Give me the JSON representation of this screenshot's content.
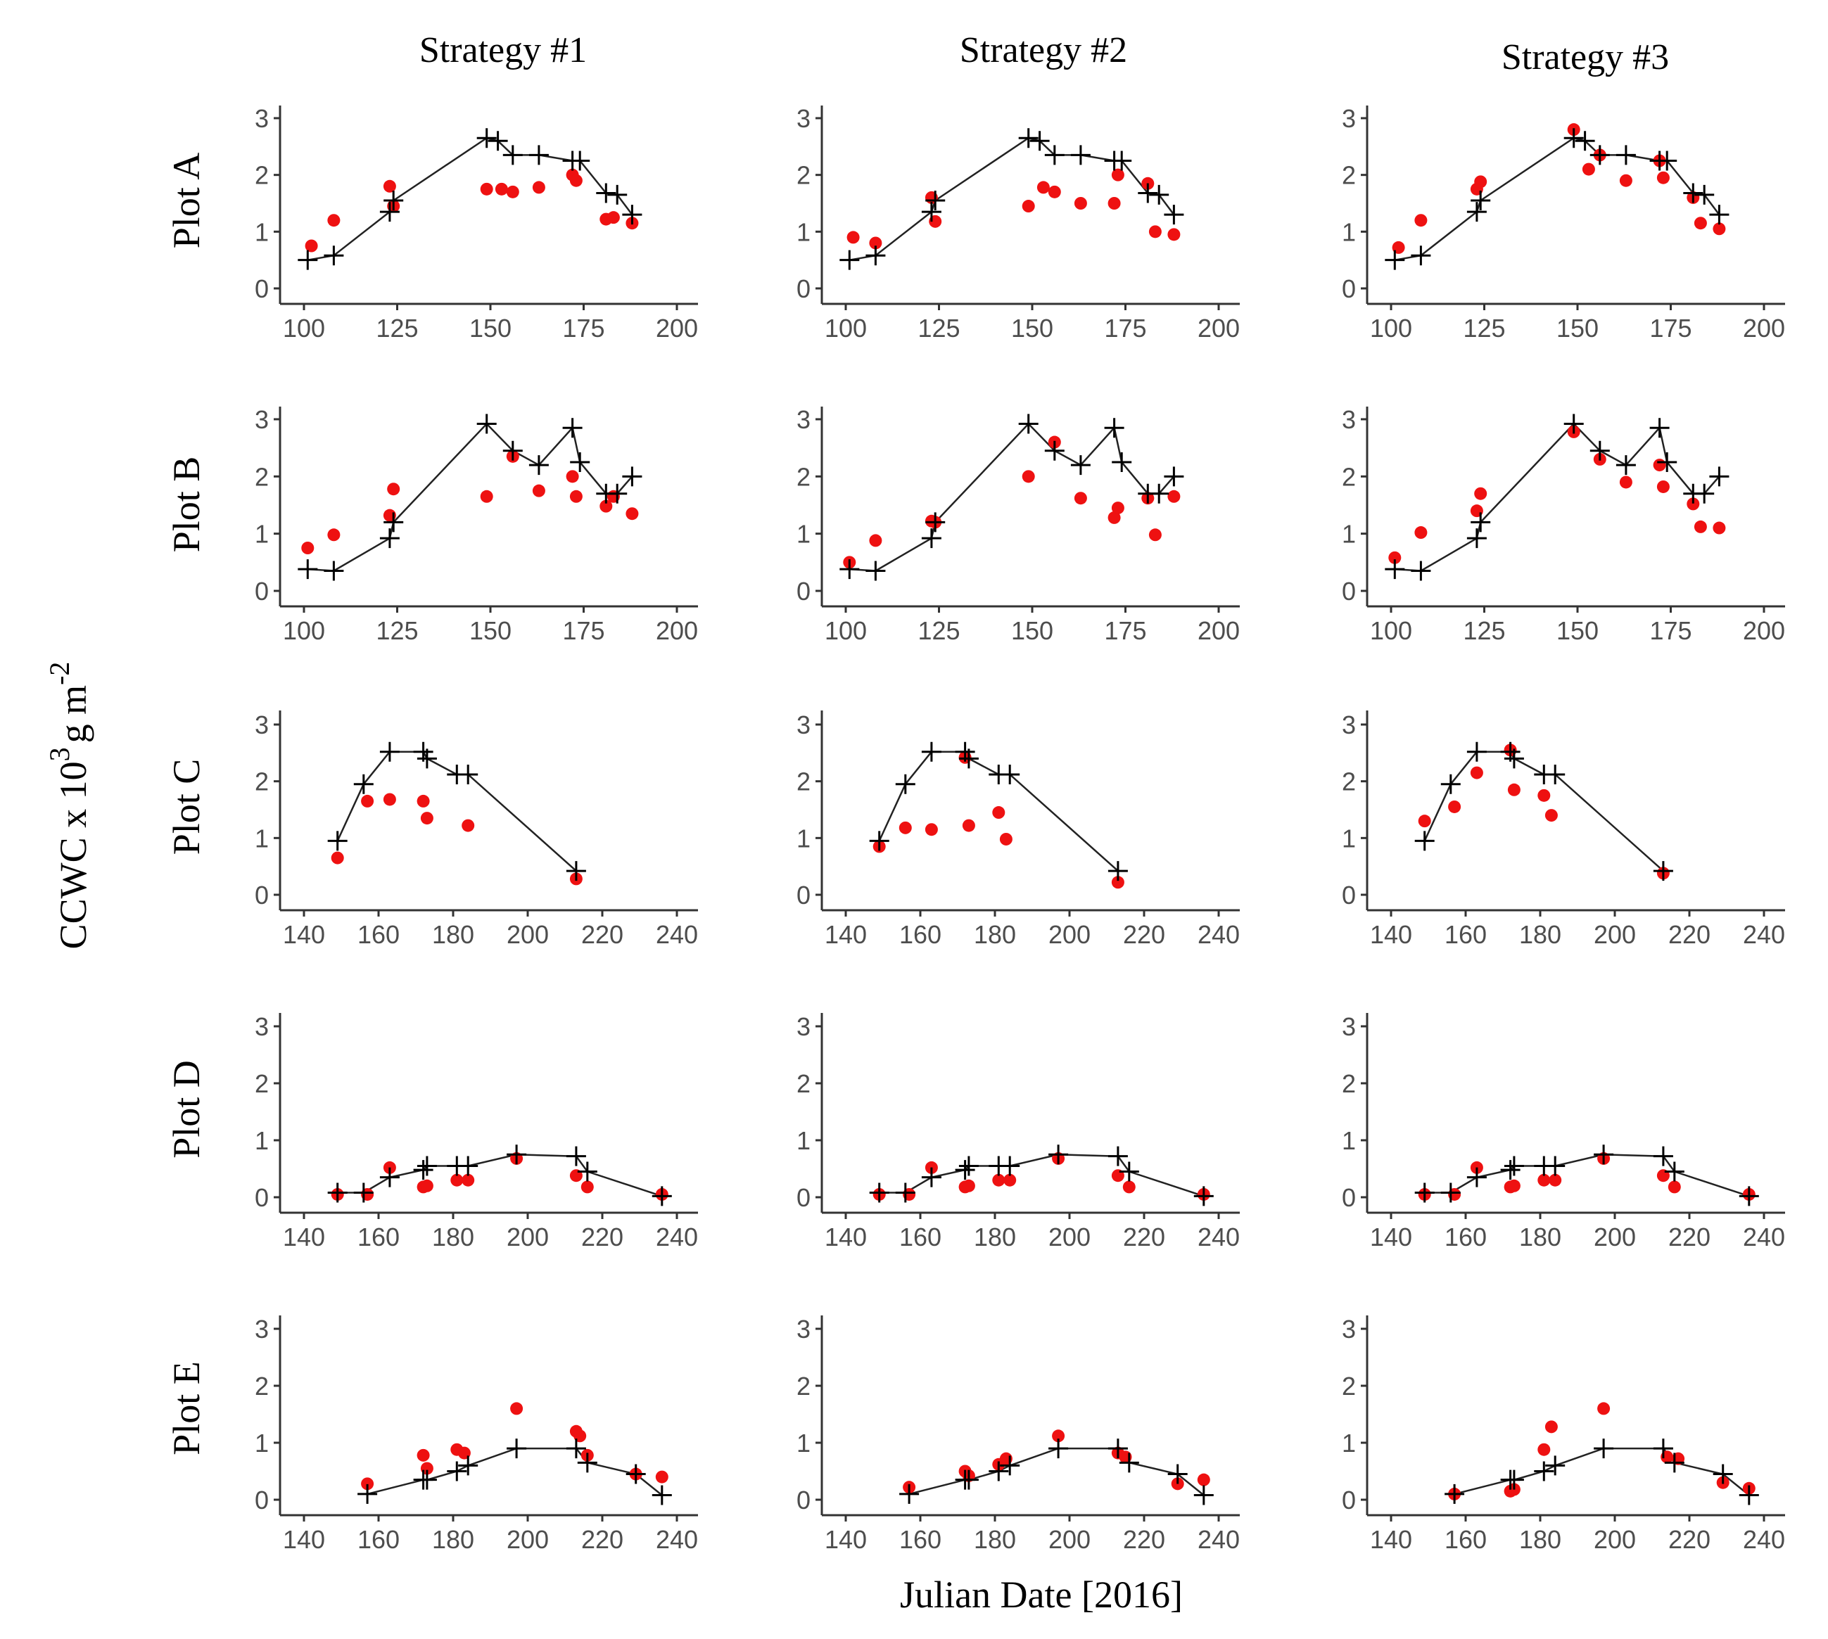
{
  "figure": {
    "ylabel": "CCWC x 10",
    "ylabel_sup1": "3",
    "ylabel_unit": "g m",
    "ylabel_sup2": "-2",
    "xlabel": "Julian Date [2016]",
    "columns": [
      "Strategy #1",
      "Strategy #2",
      "Strategy #3"
    ],
    "rows": [
      "Plot A",
      "Plot B",
      "Plot C",
      "Plot D",
      "Plot E"
    ],
    "colors": {
      "observed": "#000000",
      "estimated": "#ee1111",
      "axis": "#333333",
      "tick_text": "#4d4d4d"
    }
  },
  "chart_data": [
    {
      "type": "scatter",
      "plot": "Plot A",
      "strategy": "Strategy #1",
      "xlim": [
        100,
        200
      ],
      "ylim": [
        0,
        3
      ],
      "xticks": [
        100,
        125,
        150,
        175,
        200
      ],
      "yticks": [
        0,
        1,
        2,
        3
      ],
      "observed": {
        "x": [
          101,
          108,
          123,
          124,
          149,
          152,
          156,
          163,
          172,
          174,
          181,
          184,
          188
        ],
        "y": [
          0.5,
          0.58,
          1.35,
          1.55,
          2.65,
          2.6,
          2.35,
          2.35,
          2.25,
          2.25,
          1.68,
          1.65,
          1.3
        ]
      },
      "estimated": {
        "x": [
          102,
          108,
          123,
          124,
          149,
          153,
          156,
          163,
          172,
          173,
          181,
          183,
          188
        ],
        "y": [
          0.75,
          1.2,
          1.8,
          1.45,
          1.75,
          1.75,
          1.7,
          1.78,
          2.0,
          1.9,
          1.22,
          1.25,
          1.15
        ]
      }
    },
    {
      "type": "scatter",
      "plot": "Plot A",
      "strategy": "Strategy #2",
      "xlim": [
        100,
        200
      ],
      "ylim": [
        0,
        3
      ],
      "xticks": [
        100,
        125,
        150,
        175,
        200
      ],
      "yticks": [
        0,
        1,
        2,
        3
      ],
      "observed": {
        "x": [
          101,
          108,
          123,
          124,
          149,
          152,
          156,
          163,
          172,
          174,
          181,
          184,
          188
        ],
        "y": [
          0.5,
          0.58,
          1.35,
          1.55,
          2.65,
          2.6,
          2.35,
          2.35,
          2.25,
          2.25,
          1.68,
          1.65,
          1.3
        ]
      },
      "estimated": {
        "x": [
          102,
          108,
          123,
          124,
          149,
          153,
          156,
          163,
          172,
          173,
          181,
          183,
          188
        ],
        "y": [
          0.9,
          0.8,
          1.6,
          1.18,
          1.45,
          1.78,
          1.7,
          1.5,
          1.5,
          2.0,
          1.85,
          1.0,
          0.95
        ]
      }
    },
    {
      "type": "scatter",
      "plot": "Plot A",
      "strategy": "Strategy #3",
      "xlim": [
        100,
        200
      ],
      "ylim": [
        0,
        3
      ],
      "xticks": [
        100,
        125,
        150,
        175,
        200
      ],
      "yticks": [
        0,
        1,
        2,
        3
      ],
      "observed": {
        "x": [
          101,
          108,
          123,
          124,
          149,
          152,
          156,
          163,
          172,
          174,
          181,
          184,
          188
        ],
        "y": [
          0.5,
          0.58,
          1.35,
          1.55,
          2.65,
          2.6,
          2.35,
          2.35,
          2.25,
          2.25,
          1.68,
          1.65,
          1.3
        ]
      },
      "estimated": {
        "x": [
          102,
          108,
          123,
          124,
          149,
          153,
          156,
          163,
          172,
          173,
          181,
          183,
          188
        ],
        "y": [
          0.72,
          1.2,
          1.75,
          1.88,
          2.8,
          2.1,
          2.35,
          1.9,
          2.25,
          1.95,
          1.6,
          1.15,
          1.05
        ]
      }
    },
    {
      "type": "scatter",
      "plot": "Plot B",
      "strategy": "Strategy #1",
      "xlim": [
        100,
        200
      ],
      "ylim": [
        0,
        3
      ],
      "xticks": [
        100,
        125,
        150,
        175,
        200
      ],
      "yticks": [
        0,
        1,
        2,
        3
      ],
      "observed": {
        "x": [
          101,
          108,
          123,
          124,
          149,
          156,
          163,
          172,
          174,
          181,
          184,
          188
        ],
        "y": [
          0.38,
          0.35,
          0.92,
          1.2,
          2.92,
          2.45,
          2.2,
          2.85,
          2.25,
          1.7,
          1.7,
          2.0
        ]
      },
      "estimated": {
        "x": [
          101,
          108,
          123,
          124,
          149,
          156,
          163,
          172,
          173,
          181,
          183,
          188
        ],
        "y": [
          0.75,
          0.98,
          1.32,
          1.78,
          1.65,
          2.35,
          1.75,
          2.0,
          1.65,
          1.48,
          1.65,
          1.35
        ]
      }
    },
    {
      "type": "scatter",
      "plot": "Plot B",
      "strategy": "Strategy #2",
      "xlim": [
        100,
        200
      ],
      "ylim": [
        0,
        3
      ],
      "xticks": [
        100,
        125,
        150,
        175,
        200
      ],
      "yticks": [
        0,
        1,
        2,
        3
      ],
      "observed": {
        "x": [
          101,
          108,
          123,
          124,
          149,
          156,
          163,
          172,
          174,
          181,
          184,
          188
        ],
        "y": [
          0.38,
          0.35,
          0.92,
          1.2,
          2.92,
          2.45,
          2.2,
          2.85,
          2.25,
          1.7,
          1.7,
          2.0
        ]
      },
      "estimated": {
        "x": [
          101,
          108,
          123,
          124,
          149,
          156,
          163,
          172,
          173,
          181,
          183,
          188
        ],
        "y": [
          0.5,
          0.88,
          1.22,
          1.2,
          2.0,
          2.6,
          1.62,
          1.28,
          1.45,
          1.62,
          0.98,
          1.65
        ]
      }
    },
    {
      "type": "scatter",
      "plot": "Plot B",
      "strategy": "Strategy #3",
      "xlim": [
        100,
        200
      ],
      "ylim": [
        0,
        3
      ],
      "xticks": [
        100,
        125,
        150,
        175,
        200
      ],
      "yticks": [
        0,
        1,
        2,
        3
      ],
      "observed": {
        "x": [
          101,
          108,
          123,
          124,
          149,
          156,
          163,
          172,
          174,
          181,
          184,
          188
        ],
        "y": [
          0.38,
          0.35,
          0.92,
          1.2,
          2.92,
          2.45,
          2.2,
          2.85,
          2.25,
          1.7,
          1.7,
          2.0
        ]
      },
      "estimated": {
        "x": [
          101,
          108,
          123,
          124,
          149,
          156,
          163,
          172,
          173,
          181,
          183,
          188
        ],
        "y": [
          0.58,
          1.02,
          1.4,
          1.7,
          2.78,
          2.3,
          1.9,
          2.2,
          1.82,
          1.52,
          1.12,
          1.1
        ]
      }
    },
    {
      "type": "scatter",
      "plot": "Plot C",
      "strategy": "Strategy #1",
      "xlim": [
        140,
        240
      ],
      "ylim": [
        0,
        3
      ],
      "xticks": [
        140,
        160,
        180,
        200,
        220,
        240
      ],
      "yticks": [
        0,
        1,
        2,
        3
      ],
      "observed": {
        "x": [
          149,
          156,
          163,
          172,
          173,
          181,
          184,
          213
        ],
        "y": [
          0.95,
          1.95,
          2.52,
          2.52,
          2.4,
          2.12,
          2.12,
          0.42
        ]
      },
      "estimated": {
        "x": [
          149,
          157,
          163,
          172,
          173,
          184,
          213
        ],
        "y": [
          0.65,
          1.65,
          1.68,
          1.65,
          1.35,
          1.22,
          0.28
        ]
      }
    },
    {
      "type": "scatter",
      "plot": "Plot C",
      "strategy": "Strategy #2",
      "xlim": [
        140,
        240
      ],
      "ylim": [
        0,
        3
      ],
      "xticks": [
        140,
        160,
        180,
        200,
        220,
        240
      ],
      "yticks": [
        0,
        1,
        2,
        3
      ],
      "observed": {
        "x": [
          149,
          156,
          163,
          172,
          173,
          181,
          184,
          213
        ],
        "y": [
          0.95,
          1.95,
          2.52,
          2.52,
          2.4,
          2.12,
          2.12,
          0.42
        ]
      },
      "estimated": {
        "x": [
          149,
          156,
          163,
          172,
          173,
          181,
          183,
          213
        ],
        "y": [
          0.85,
          1.18,
          1.15,
          2.42,
          1.22,
          1.45,
          0.98,
          0.22
        ]
      }
    },
    {
      "type": "scatter",
      "plot": "Plot C",
      "strategy": "Strategy #3",
      "xlim": [
        140,
        240
      ],
      "ylim": [
        0,
        3
      ],
      "xticks": [
        140,
        160,
        180,
        200,
        220,
        240
      ],
      "yticks": [
        0,
        1,
        2,
        3
      ],
      "observed": {
        "x": [
          149,
          156,
          163,
          172,
          173,
          181,
          184,
          213
        ],
        "y": [
          0.95,
          1.95,
          2.52,
          2.52,
          2.4,
          2.12,
          2.12,
          0.42
        ]
      },
      "estimated": {
        "x": [
          149,
          157,
          163,
          172,
          173,
          181,
          183,
          213
        ],
        "y": [
          1.3,
          1.55,
          2.15,
          2.55,
          1.85,
          1.75,
          1.4,
          0.38
        ]
      }
    },
    {
      "type": "scatter",
      "plot": "Plot D",
      "strategy": "Strategy #1",
      "xlim": [
        140,
        240
      ],
      "ylim": [
        0,
        3
      ],
      "xticks": [
        140,
        160,
        180,
        200,
        220,
        240
      ],
      "yticks": [
        0,
        1,
        2,
        3
      ],
      "observed": {
        "x": [
          149,
          156,
          163,
          172,
          173,
          181,
          184,
          197,
          213,
          216,
          236
        ],
        "y": [
          0.08,
          0.08,
          0.35,
          0.48,
          0.55,
          0.55,
          0.55,
          0.75,
          0.72,
          0.45,
          0.02
        ]
      },
      "estimated": {
        "x": [
          149,
          157,
          163,
          172,
          173,
          181,
          184,
          197,
          213,
          216,
          236
        ],
        "y": [
          0.05,
          0.05,
          0.52,
          0.18,
          0.2,
          0.3,
          0.3,
          0.68,
          0.38,
          0.18,
          0.05
        ]
      }
    },
    {
      "type": "scatter",
      "plot": "Plot D",
      "strategy": "Strategy #2",
      "xlim": [
        140,
        240
      ],
      "ylim": [
        0,
        3
      ],
      "xticks": [
        140,
        160,
        180,
        200,
        220,
        240
      ],
      "yticks": [
        0,
        1,
        2,
        3
      ],
      "observed": {
        "x": [
          149,
          156,
          163,
          172,
          173,
          181,
          184,
          197,
          213,
          216,
          236
        ],
        "y": [
          0.08,
          0.08,
          0.35,
          0.48,
          0.55,
          0.55,
          0.55,
          0.75,
          0.72,
          0.45,
          0.02
        ]
      },
      "estimated": {
        "x": [
          149,
          157,
          163,
          172,
          173,
          181,
          184,
          197,
          213,
          216,
          236
        ],
        "y": [
          0.05,
          0.05,
          0.52,
          0.18,
          0.2,
          0.3,
          0.3,
          0.68,
          0.38,
          0.18,
          0.05
        ]
      }
    },
    {
      "type": "scatter",
      "plot": "Plot D",
      "strategy": "Strategy #3",
      "xlim": [
        140,
        240
      ],
      "ylim": [
        0,
        3
      ],
      "xticks": [
        140,
        160,
        180,
        200,
        220,
        240
      ],
      "yticks": [
        0,
        1,
        2,
        3
      ],
      "observed": {
        "x": [
          149,
          156,
          163,
          172,
          173,
          181,
          184,
          197,
          213,
          216,
          236
        ],
        "y": [
          0.08,
          0.08,
          0.35,
          0.48,
          0.55,
          0.55,
          0.55,
          0.75,
          0.72,
          0.45,
          0.02
        ]
      },
      "estimated": {
        "x": [
          149,
          157,
          163,
          172,
          173,
          181,
          184,
          197,
          213,
          216,
          236
        ],
        "y": [
          0.05,
          0.05,
          0.52,
          0.18,
          0.2,
          0.3,
          0.3,
          0.68,
          0.38,
          0.18,
          0.05
        ]
      }
    },
    {
      "type": "scatter",
      "plot": "Plot E",
      "strategy": "Strategy #1",
      "xlim": [
        140,
        240
      ],
      "ylim": [
        0,
        3
      ],
      "xticks": [
        140,
        160,
        180,
        200,
        220,
        240
      ],
      "yticks": [
        0,
        1,
        2,
        3
      ],
      "observed": {
        "x": [
          157,
          172,
          173,
          181,
          184,
          197,
          213,
          216,
          229,
          236
        ],
        "y": [
          0.1,
          0.35,
          0.35,
          0.5,
          0.6,
          0.9,
          0.9,
          0.65,
          0.45,
          0.08
        ]
      },
      "estimated": {
        "x": [
          157,
          172,
          173,
          181,
          183,
          197,
          213,
          214,
          216,
          229,
          236
        ],
        "y": [
          0.28,
          0.78,
          0.55,
          0.88,
          0.82,
          1.6,
          1.2,
          1.12,
          0.78,
          0.45,
          0.4
        ]
      }
    },
    {
      "type": "scatter",
      "plot": "Plot E",
      "strategy": "Strategy #2",
      "xlim": [
        140,
        240
      ],
      "ylim": [
        0,
        3
      ],
      "xticks": [
        140,
        160,
        180,
        200,
        220,
        240
      ],
      "yticks": [
        0,
        1,
        2,
        3
      ],
      "observed": {
        "x": [
          157,
          172,
          173,
          181,
          184,
          197,
          213,
          216,
          229,
          236
        ],
        "y": [
          0.1,
          0.35,
          0.35,
          0.5,
          0.6,
          0.9,
          0.9,
          0.65,
          0.45,
          0.08
        ]
      },
      "estimated": {
        "x": [
          157,
          172,
          173,
          181,
          183,
          197,
          213,
          215,
          229,
          236
        ],
        "y": [
          0.22,
          0.5,
          0.42,
          0.62,
          0.72,
          1.12,
          0.82,
          0.75,
          0.28,
          0.35
        ]
      }
    },
    {
      "type": "scatter",
      "plot": "Plot E",
      "strategy": "Strategy #3",
      "xlim": [
        140,
        240
      ],
      "ylim": [
        0,
        3
      ],
      "xticks": [
        140,
        160,
        180,
        200,
        220,
        240
      ],
      "yticks": [
        0,
        1,
        2,
        3
      ],
      "observed": {
        "x": [
          157,
          172,
          173,
          181,
          184,
          197,
          213,
          216,
          229,
          236
        ],
        "y": [
          0.1,
          0.35,
          0.35,
          0.5,
          0.6,
          0.9,
          0.9,
          0.65,
          0.45,
          0.08
        ]
      },
      "estimated": {
        "x": [
          157,
          172,
          173,
          181,
          183,
          197,
          214,
          217,
          229,
          236
        ],
        "y": [
          0.1,
          0.15,
          0.18,
          0.88,
          1.28,
          1.6,
          0.75,
          0.72,
          0.3,
          0.2
        ]
      }
    }
  ]
}
